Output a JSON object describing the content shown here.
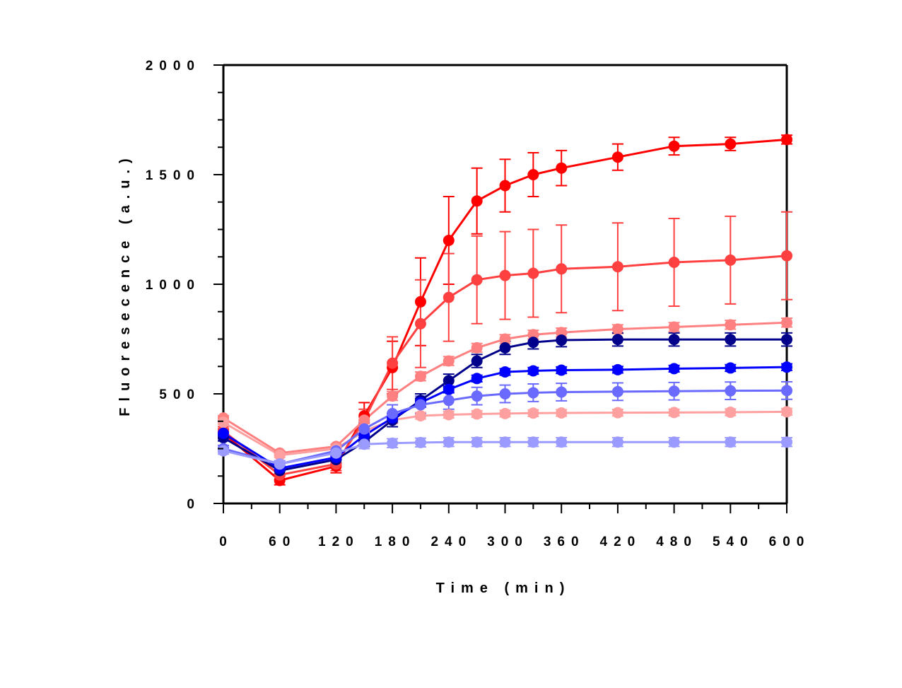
{
  "chart_data": {
    "type": "line",
    "xlabel": "Time (min)",
    "ylabel": "Fluoresecence (a.u.)",
    "xlim": [
      0,
      600
    ],
    "ylim": [
      0,
      2000
    ],
    "x_ticks": [
      0,
      60,
      120,
      180,
      240,
      300,
      360,
      420,
      480,
      540,
      600
    ],
    "x_tick_labels": [
      "0",
      "60",
      "120",
      "180",
      "240",
      "300",
      "360",
      "420",
      "480",
      "540",
      "600"
    ],
    "y_ticks": [
      0,
      500,
      1000,
      1500,
      2000
    ],
    "y_tick_labels": [
      "0",
      "500",
      "1000",
      "1500",
      "2000"
    ],
    "grid": false,
    "legend": "none",
    "x": [
      0,
      60,
      120,
      150,
      180,
      210,
      240,
      270,
      300,
      330,
      360,
      420,
      480,
      540,
      600
    ],
    "series": [
      {
        "color": "#ff0000",
        "values": [
          320,
          105,
          170,
          400,
          620,
          920,
          1200,
          1380,
          1450,
          1500,
          1530,
          1580,
          1630,
          1640,
          1660
        ],
        "error": [
          20,
          20,
          30,
          60,
          120,
          200,
          200,
          150,
          120,
          100,
          80,
          60,
          40,
          30,
          20
        ]
      },
      {
        "color": "#ff4040",
        "values": [
          330,
          130,
          180,
          380,
          640,
          820,
          940,
          1020,
          1040,
          1050,
          1070,
          1080,
          1100,
          1110,
          1130
        ],
        "error": [
          20,
          20,
          30,
          50,
          120,
          200,
          200,
          200,
          200,
          200,
          200,
          200,
          200,
          200,
          200
        ]
      },
      {
        "color": "#ff8080",
        "values": [
          390,
          230,
          260,
          380,
          490,
          580,
          650,
          710,
          750,
          770,
          780,
          795,
          805,
          815,
          825
        ],
        "error": [
          10,
          10,
          10,
          15,
          20,
          20,
          20,
          20,
          20,
          20,
          20,
          20,
          20,
          20,
          20
        ]
      },
      {
        "color": "#ffa0a0",
        "values": [
          370,
          220,
          250,
          330,
          380,
          400,
          405,
          408,
          410,
          412,
          413,
          414,
          415,
          416,
          418
        ],
        "error": [
          10,
          10,
          10,
          10,
          15,
          15,
          15,
          15,
          15,
          15,
          15,
          15,
          15,
          15,
          15
        ]
      },
      {
        "color": "#00008b",
        "values": [
          300,
          150,
          200,
          280,
          380,
          470,
          560,
          650,
          710,
          735,
          745,
          748,
          748,
          748,
          748
        ],
        "error": [
          15,
          15,
          15,
          20,
          30,
          30,
          30,
          30,
          30,
          30,
          30,
          30,
          30,
          30,
          30
        ]
      },
      {
        "color": "#0000ff",
        "values": [
          320,
          160,
          210,
          310,
          390,
          460,
          520,
          570,
          600,
          605,
          608,
          610,
          615,
          618,
          622
        ],
        "error": [
          10,
          10,
          10,
          15,
          20,
          20,
          15,
          15,
          15,
          15,
          15,
          15,
          15,
          15,
          15
        ]
      },
      {
        "color": "#6a6aff",
        "values": [
          250,
          180,
          240,
          340,
          410,
          450,
          470,
          490,
          500,
          505,
          508,
          510,
          512,
          514,
          515
        ],
        "error": [
          15,
          15,
          20,
          30,
          40,
          40,
          40,
          40,
          40,
          40,
          40,
          40,
          40,
          40,
          40
        ]
      },
      {
        "color": "#9a9aff",
        "values": [
          240,
          180,
          230,
          270,
          275,
          278,
          280,
          280,
          280,
          280,
          280,
          280,
          280,
          280,
          280
        ],
        "error": [
          15,
          15,
          15,
          20,
          20,
          20,
          20,
          20,
          20,
          20,
          20,
          20,
          20,
          20,
          20
        ]
      }
    ]
  }
}
